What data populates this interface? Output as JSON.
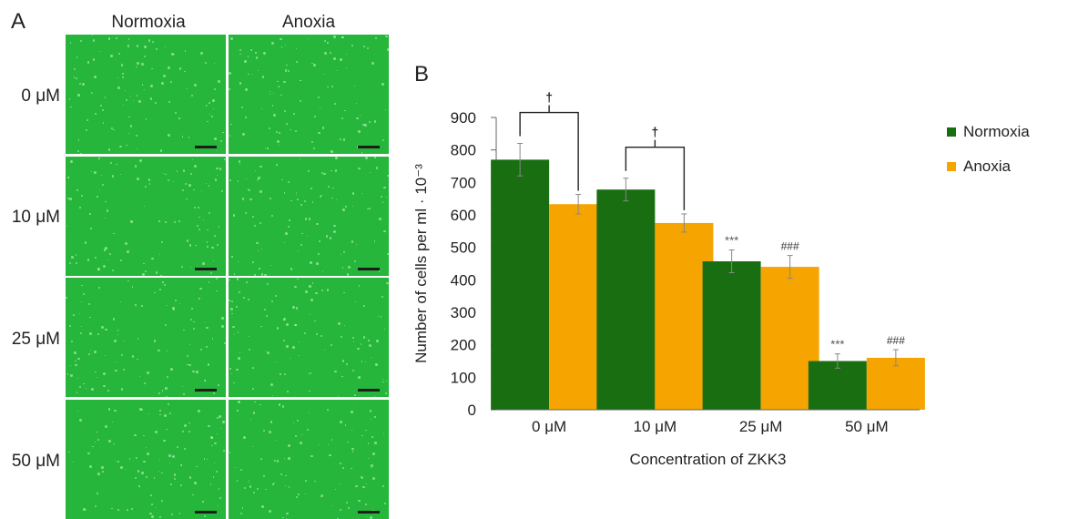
{
  "panel_a": {
    "letter": "A",
    "columns": [
      "Normoxia",
      "Anoxia"
    ],
    "rows": [
      "0 μM",
      "10 μM",
      "25 μM",
      "50 μM"
    ]
  },
  "panel_b": {
    "letter": "B"
  },
  "colors": {
    "normoxia": "#1a6e12",
    "anoxia": "#f5a400",
    "micrograph": "#26b63c"
  },
  "chart_data": {
    "type": "bar",
    "categories": [
      "0 μM",
      "10 μM",
      "25 μM",
      "50 μM"
    ],
    "series": [
      {
        "name": "Normoxia",
        "values": [
          770,
          678,
          457,
          150
        ],
        "errors": [
          50,
          35,
          35,
          22
        ]
      },
      {
        "name": "Anoxia",
        "values": [
          633,
          575,
          440,
          160
        ],
        "errors": [
          30,
          28,
          35,
          25
        ]
      }
    ],
    "xlabel": "Concentration of ZKK3",
    "ylabel": "Number of cells per ml · 10⁻³",
    "ylim": [
      0,
      900
    ],
    "yticks": [
      "0",
      "100",
      "200",
      "300",
      "400",
      "500",
      "600",
      "700",
      "800",
      "900"
    ],
    "grid": false,
    "legend_position": "top-right",
    "annotations": {
      "bracket_marker": "†",
      "bracket_categories": [
        "0 μM",
        "10 μM"
      ],
      "normoxia_marker": "***",
      "anoxia_marker": "###",
      "marked_categories": [
        "25 μM",
        "50 μM"
      ]
    }
  }
}
